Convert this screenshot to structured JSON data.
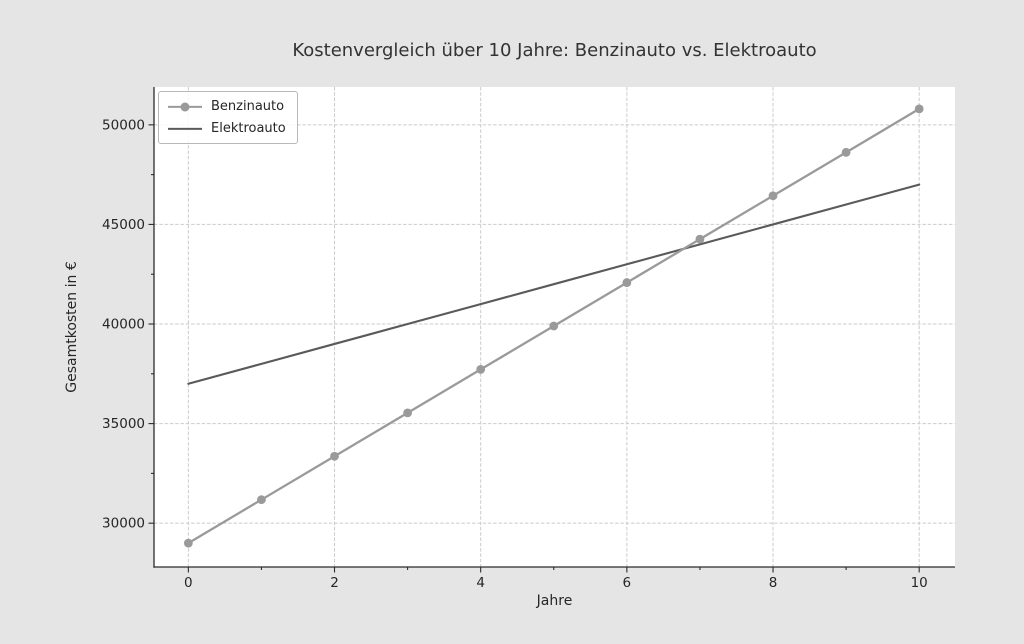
{
  "figure": {
    "background_color": "#e5e5e5",
    "plot_background_color": "#ffffff",
    "grid_color": "#cbcbcb",
    "spine_color": "#2b2b2b",
    "text_color": "#262626"
  },
  "legend": {
    "position": "upper-left",
    "items": [
      {
        "label": "Benzinauto",
        "color": "#9a9a9a",
        "marker": "circle-line"
      },
      {
        "label": "Elektroauto",
        "color": "#5a5a5a",
        "marker": "line"
      }
    ]
  },
  "chart_data": {
    "type": "line",
    "title": "Kostenvergleich über 10 Jahre: Benzinauto vs. Elektroauto",
    "xlabel": "Jahre",
    "ylabel": "Gesamtkosten in €",
    "x": [
      0,
      1,
      2,
      3,
      4,
      5,
      6,
      7,
      8,
      9,
      10
    ],
    "series": [
      {
        "name": "Benzinauto",
        "color": "#9a9a9a",
        "marker": "circle",
        "line_width": 2.3,
        "values": [
          29000,
          31180,
          33360,
          35540,
          37720,
          39900,
          42080,
          44260,
          46440,
          48620,
          50800
        ]
      },
      {
        "name": "Elektroauto",
        "color": "#5a5a5a",
        "marker": "none",
        "line_width": 2.1,
        "values": [
          37000,
          38000,
          39000,
          40000,
          41000,
          42000,
          43000,
          44000,
          45000,
          46000,
          47000
        ]
      }
    ],
    "xticks": [
      0,
      2,
      4,
      6,
      8,
      10
    ],
    "xticks_minor": [
      1,
      3,
      5,
      7,
      9
    ],
    "yticks": [
      30000,
      35000,
      40000,
      45000,
      50000
    ],
    "yticks_minor": [
      32500,
      37500,
      42500,
      47500
    ],
    "xlim": [
      -0.47,
      10.49
    ],
    "ylim": [
      27800,
      51900
    ],
    "grid": true,
    "grid_style": "dashed",
    "legend_position": "upper-left"
  }
}
